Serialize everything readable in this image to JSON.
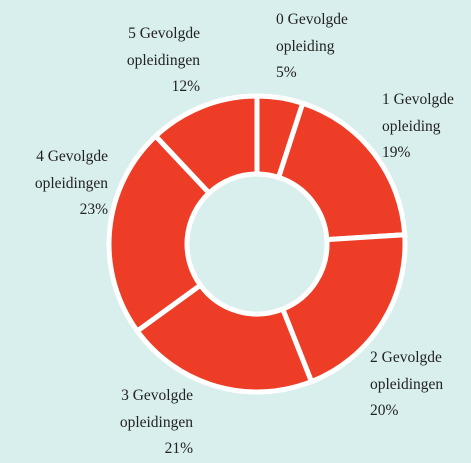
{
  "chart_data": {
    "type": "donut",
    "categories": [
      "0 Gevolgde opleiding",
      "1 Gevolgde opleiding",
      "2 Gevolgde opleidingen",
      "3 Gevolgde opleidingen",
      "4 Gevolgde opleidingen",
      "5 Gevolgde opleidingen"
    ],
    "values": [
      5,
      19,
      20,
      21,
      23,
      12
    ],
    "value_labels": [
      "5%",
      "19%",
      "20%",
      "21%",
      "23%",
      "12%"
    ],
    "color": "#ee3d27"
  }
}
